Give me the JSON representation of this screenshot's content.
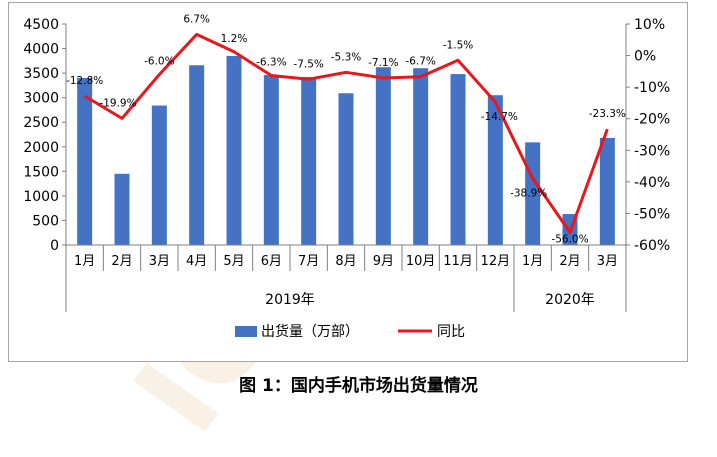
{
  "caption": "图 1：国内手机市场出货量情况",
  "watermark": "ICT中国信",
  "colors": {
    "bar": "#4472c4",
    "line": "#e8171b",
    "axis": "#7f7f7f",
    "grid": "#a6a6a6"
  },
  "chart_data": {
    "type": "bar",
    "categories": [
      "1月",
      "2月",
      "3月",
      "4月",
      "5月",
      "6月",
      "7月",
      "8月",
      "9月",
      "10月",
      "11月",
      "12月",
      "1月",
      "2月",
      "3月"
    ],
    "year_groups": [
      {
        "label": "2019年",
        "span": 12
      },
      {
        "label": "2020年",
        "span": 3
      }
    ],
    "series": [
      {
        "name": "出货量（万部）",
        "type": "bar",
        "axis": "left",
        "values": [
          3400,
          1450,
          2840,
          3660,
          3850,
          3460,
          3420,
          3090,
          3620,
          3600,
          3480,
          3050,
          2090,
          630,
          2180
        ]
      },
      {
        "name": "同比",
        "type": "line",
        "axis": "right",
        "values": [
          -12.8,
          -19.9,
          -6.0,
          6.7,
          1.2,
          -6.3,
          -7.5,
          -5.3,
          -7.1,
          -6.7,
          -1.5,
          -14.7,
          -38.9,
          -56.0,
          -23.3
        ],
        "labels": [
          "-12.8%",
          "-19.9%",
          "-6.0%",
          "6.7%",
          "1.2%",
          "-6.3%",
          "-7.5%",
          "-5.3%",
          "-7.1%",
          "-6.7%",
          "-1.5%",
          "-14.7%",
          "-38.9%",
          "-56.0%",
          "-23.3%"
        ]
      }
    ],
    "y_left": {
      "min": 0,
      "max": 4500,
      "ticks": [
        0,
        500,
        1000,
        1500,
        2000,
        2500,
        3000,
        3500,
        4000,
        4500
      ]
    },
    "y_right": {
      "min": -60,
      "max": 10,
      "ticks": [
        10,
        0,
        -10,
        -20,
        -30,
        -40,
        -50,
        -60
      ],
      "tick_labels": [
        "10%",
        "0%",
        "-10%",
        "-20%",
        "-30%",
        "-40%",
        "-50%",
        "-60%"
      ]
    },
    "legend_position": "bottom",
    "grid": false
  }
}
